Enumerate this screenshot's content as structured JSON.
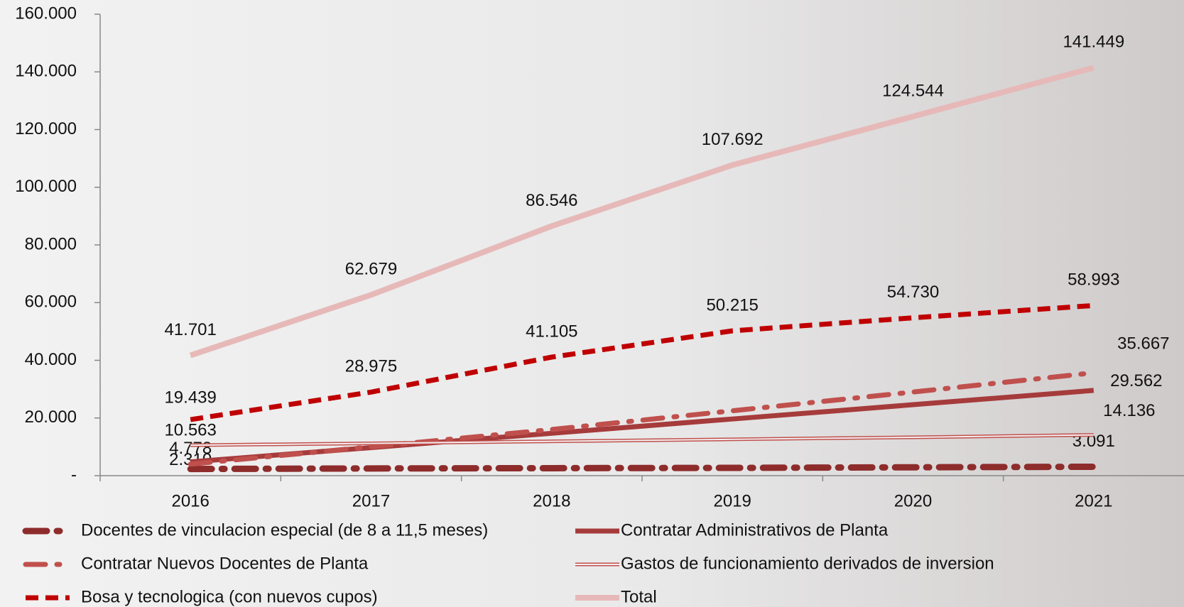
{
  "chart_data": {
    "type": "line",
    "categories": [
      "2016",
      "2017",
      "2018",
      "2019",
      "2020",
      "2021"
    ],
    "ylim": [
      0,
      160000
    ],
    "yticks": [
      {
        "value": 0,
        "label": "-"
      },
      {
        "value": 20000,
        "label": "20.000"
      },
      {
        "value": 40000,
        "label": "40.000"
      },
      {
        "value": 60000,
        "label": "60.000"
      },
      {
        "value": 80000,
        "label": "80.000"
      },
      {
        "value": 100000,
        "label": "100.000"
      },
      {
        "value": 120000,
        "label": "120.000"
      },
      {
        "value": 140000,
        "label": "140.000"
      },
      {
        "value": 160000,
        "label": "160.000"
      }
    ],
    "series": [
      {
        "name": "Docentes de vinculacion especial (de 8 a 11,5 meses)",
        "color": "#8e2c2c",
        "values": [
          2310,
          2500,
          2600,
          2700,
          2900,
          3091
        ],
        "value_labels": [
          "2.310",
          null,
          null,
          null,
          null,
          "3.091"
        ]
      },
      {
        "name": "Contratar Administrativos  de Planta",
        "color": "#a63b3b",
        "values": [
          4778,
          9735,
          14692,
          19648,
          24605,
          29562
        ],
        "value_labels": [
          "4.778",
          null,
          null,
          null,
          null,
          "29.562"
        ]
      },
      {
        "name": "Contratar Nuevos Docentes de Planta",
        "color": "#c0504d",
        "values": [
          4000,
          10000,
          16000,
          22500,
          29000,
          35667
        ],
        "value_labels": [
          null,
          null,
          null,
          null,
          null,
          "35.667"
        ]
      },
      {
        "name": "Gastos de funcionamiento derivados de inversion",
        "color": "#c0504d",
        "values": [
          10563,
          11200,
          11900,
          12600,
          13300,
          14136
        ],
        "value_labels": [
          "10.563",
          null,
          null,
          null,
          null,
          "14.136"
        ]
      },
      {
        "name": "Bosa y tecnologica  (con nuevos cupos)",
        "color": "#c00000",
        "values": [
          19439,
          28975,
          41105,
          50215,
          54730,
          58993
        ],
        "value_labels": [
          "19.439",
          "28.975",
          "41.105",
          "50.215",
          "54.730",
          "58.993"
        ]
      },
      {
        "name": "Total",
        "color": "#e6b9b8",
        "values": [
          41701,
          62679,
          86546,
          107692,
          124544,
          141449
        ],
        "value_labels": [
          "41.701",
          "62.679",
          "86.546",
          "107.692",
          "124.544",
          "141.449"
        ]
      }
    ]
  }
}
